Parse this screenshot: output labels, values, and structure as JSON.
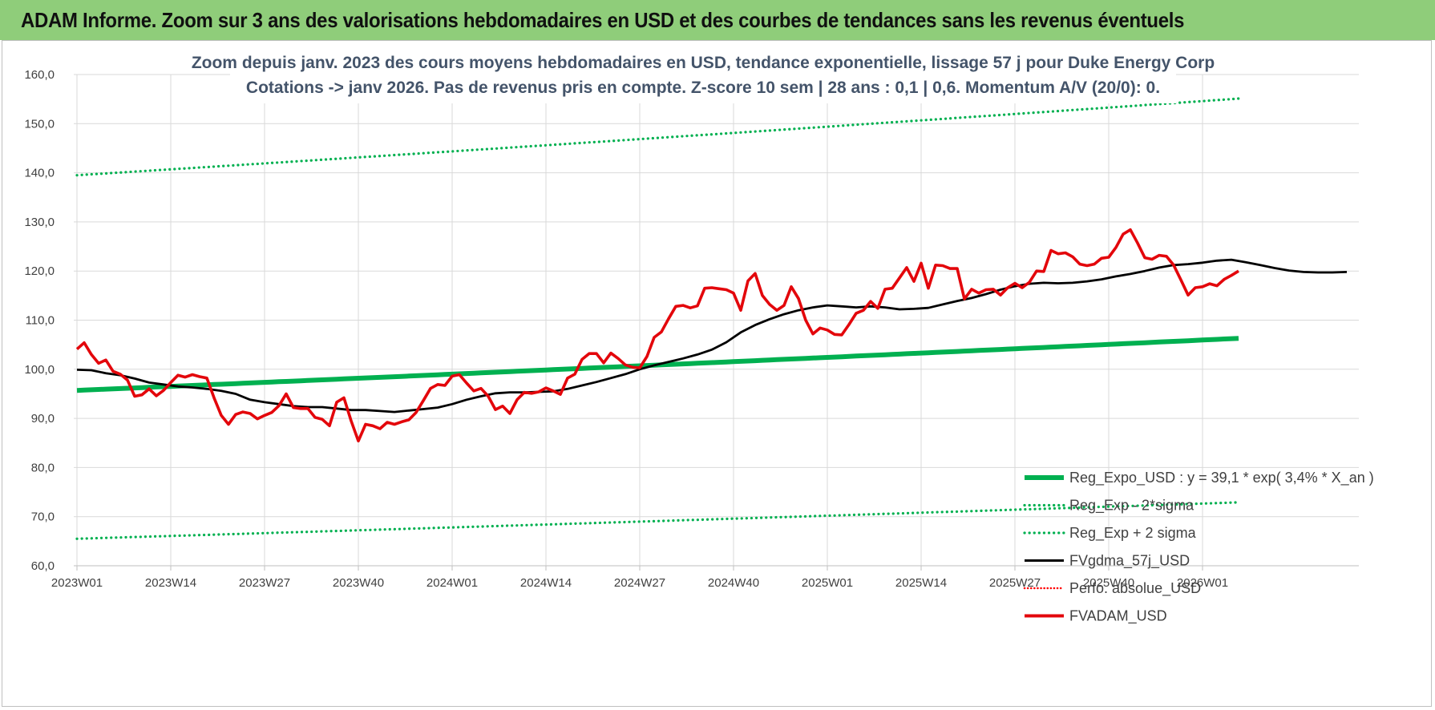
{
  "header": {
    "title": "ADAM Informe. Zoom sur 3 ans des valorisations hebdomadaires en USD et des courbes de tendances sans les revenus éventuels"
  },
  "colors": {
    "header_bg": "#8fcd7a",
    "reg_expo": "#00b050",
    "reg_sigma": "#00b050",
    "fvgdma": "#000000",
    "perfo": "#ff0000",
    "fvadam": "#e3060b"
  },
  "chart_data": {
    "type": "line",
    "title_line1": "Zoom depuis janv. 2023 des cours moyens hebdomadaires en USD, tendance exponentielle, lissage 57 j pour Duke Energy Corp",
    "title_line2": "Cotations -> janv 2026. Pas de revenus pris en compte. Z-score 10 sem | 28 ans : 0,1 | 0,6. Momentum A/V (20/0): 0.",
    "ylim": [
      60,
      160
    ],
    "yticks": [
      "60,0",
      "70,0",
      "80,0",
      "90,0",
      "100,0",
      "110,0",
      "120,0",
      "130,0",
      "140,0",
      "150,0",
      "160,0"
    ],
    "ytick_values": [
      60,
      70,
      80,
      90,
      100,
      110,
      120,
      130,
      140,
      150,
      160
    ],
    "xticks": [
      "2023W01",
      "2023W14",
      "2023W27",
      "2023W40",
      "2024W01",
      "2024W14",
      "2024W27",
      "2024W40",
      "2025W01",
      "2025W14",
      "2025W27",
      "2025W40",
      "2026W01"
    ],
    "xtick_index": [
      0,
      13,
      26,
      39,
      52,
      65,
      78,
      91,
      104,
      117,
      130,
      143,
      156
    ],
    "x_count": 161,
    "grid": true,
    "legend_position": "bottom-right",
    "series": [
      {
        "name": "Reg_Expo_USD : y = 39,1 * exp( 3,4% *  X_an )",
        "style": "thick",
        "start": 95.7,
        "end": 106.3
      },
      {
        "name": "Reg_Exp - 2*sigma",
        "style": "dotted",
        "start": 65.5,
        "end": 72.9
      },
      {
        "name": "Reg_Exp + 2 sigma",
        "style": "dotted",
        "start": 139.5,
        "end": 155.1
      },
      {
        "name": "FVgdma_57j_USD",
        "style": "solid",
        "points": [
          [
            0,
            99.9
          ],
          [
            2,
            99.8
          ],
          [
            4,
            99.2
          ],
          [
            6,
            98.8
          ],
          [
            8,
            98.1
          ],
          [
            10,
            97.3
          ],
          [
            12,
            96.9
          ],
          [
            14,
            96.5
          ],
          [
            16,
            96.3
          ],
          [
            18,
            96.0
          ],
          [
            20,
            95.6
          ],
          [
            22,
            95.0
          ],
          [
            24,
            93.8
          ],
          [
            26,
            93.3
          ],
          [
            28,
            92.9
          ],
          [
            30,
            92.5
          ],
          [
            32,
            92.3
          ],
          [
            34,
            92.3
          ],
          [
            36,
            92.0
          ],
          [
            38,
            91.7
          ],
          [
            40,
            91.7
          ],
          [
            42,
            91.5
          ],
          [
            44,
            91.3
          ],
          [
            46,
            91.6
          ],
          [
            48,
            91.9
          ],
          [
            50,
            92.2
          ],
          [
            52,
            92.9
          ],
          [
            54,
            93.8
          ],
          [
            56,
            94.5
          ],
          [
            58,
            95.1
          ],
          [
            60,
            95.3
          ],
          [
            62,
            95.3
          ],
          [
            64,
            95.4
          ],
          [
            66,
            95.5
          ],
          [
            68,
            96.0
          ],
          [
            70,
            96.7
          ],
          [
            72,
            97.4
          ],
          [
            74,
            98.2
          ],
          [
            76,
            99.0
          ],
          [
            78,
            100.0
          ],
          [
            80,
            100.8
          ],
          [
            82,
            101.5
          ],
          [
            84,
            102.2
          ],
          [
            86,
            103.0
          ],
          [
            88,
            104.0
          ],
          [
            90,
            105.5
          ],
          [
            92,
            107.5
          ],
          [
            94,
            109.0
          ],
          [
            96,
            110.2
          ],
          [
            98,
            111.2
          ],
          [
            100,
            112.0
          ],
          [
            102,
            112.6
          ],
          [
            104,
            113.0
          ],
          [
            106,
            112.8
          ],
          [
            108,
            112.6
          ],
          [
            110,
            112.8
          ],
          [
            112,
            112.6
          ],
          [
            114,
            112.2
          ],
          [
            116,
            112.3
          ],
          [
            118,
            112.5
          ],
          [
            120,
            113.2
          ],
          [
            122,
            113.9
          ],
          [
            124,
            114.5
          ],
          [
            126,
            115.3
          ],
          [
            128,
            116.2
          ],
          [
            130,
            116.9
          ],
          [
            132,
            117.4
          ],
          [
            134,
            117.6
          ],
          [
            136,
            117.5
          ],
          [
            138,
            117.6
          ],
          [
            140,
            117.9
          ],
          [
            142,
            118.3
          ],
          [
            144,
            118.9
          ],
          [
            146,
            119.4
          ],
          [
            148,
            120.0
          ],
          [
            150,
            120.7
          ],
          [
            152,
            121.2
          ],
          [
            154,
            121.4
          ],
          [
            156,
            121.7
          ],
          [
            158,
            122.1
          ],
          [
            160,
            122.3
          ],
          [
            162,
            121.8
          ],
          [
            164,
            121.2
          ],
          [
            166,
            120.6
          ],
          [
            168,
            120.1
          ],
          [
            170,
            119.8
          ],
          [
            172,
            119.7
          ],
          [
            174,
            119.7
          ],
          [
            176,
            119.8
          ]
        ]
      },
      {
        "name": "Perfo. absolue_USD",
        "style": "dotted-red",
        "hidden_in_plot": true
      },
      {
        "name": "FVADAM_USD",
        "style": "solid-thick",
        "points": [
          [
            0,
            104.1
          ],
          [
            1,
            105.4
          ],
          [
            2,
            103.0
          ],
          [
            3,
            101.2
          ],
          [
            4,
            101.9
          ],
          [
            5,
            99.6
          ],
          [
            6,
            99.0
          ],
          [
            7,
            97.8
          ],
          [
            8,
            94.5
          ],
          [
            9,
            94.8
          ],
          [
            10,
            96.0
          ],
          [
            11,
            94.6
          ],
          [
            12,
            95.7
          ],
          [
            13,
            97.3
          ],
          [
            14,
            98.8
          ],
          [
            15,
            98.4
          ],
          [
            16,
            98.9
          ],
          [
            17,
            98.5
          ],
          [
            18,
            98.2
          ],
          [
            19,
            94.2
          ],
          [
            20,
            90.6
          ],
          [
            21,
            88.8
          ],
          [
            22,
            90.8
          ],
          [
            23,
            91.3
          ],
          [
            24,
            91.0
          ],
          [
            25,
            89.9
          ],
          [
            26,
            90.6
          ],
          [
            27,
            91.2
          ],
          [
            28,
            92.6
          ],
          [
            29,
            95.0
          ],
          [
            30,
            92.2
          ],
          [
            31,
            92.0
          ],
          [
            32,
            92.0
          ],
          [
            33,
            90.2
          ],
          [
            34,
            89.8
          ],
          [
            35,
            88.5
          ],
          [
            36,
            93.3
          ],
          [
            37,
            94.2
          ],
          [
            38,
            89.5
          ],
          [
            39,
            85.4
          ],
          [
            40,
            88.8
          ],
          [
            41,
            88.5
          ],
          [
            42,
            87.9
          ],
          [
            43,
            89.2
          ],
          [
            44,
            88.8
          ],
          [
            45,
            89.3
          ],
          [
            46,
            89.7
          ],
          [
            47,
            91.2
          ],
          [
            48,
            93.6
          ],
          [
            49,
            96.1
          ],
          [
            50,
            96.9
          ],
          [
            51,
            96.7
          ],
          [
            52,
            98.6
          ],
          [
            53,
            98.9
          ],
          [
            54,
            97.2
          ],
          [
            55,
            95.6
          ],
          [
            56,
            96.1
          ],
          [
            57,
            94.5
          ],
          [
            58,
            91.8
          ],
          [
            59,
            92.5
          ],
          [
            60,
            91.0
          ],
          [
            61,
            93.8
          ],
          [
            62,
            95.3
          ],
          [
            63,
            95.1
          ],
          [
            64,
            95.4
          ],
          [
            65,
            96.2
          ],
          [
            66,
            95.6
          ],
          [
            67,
            94.9
          ],
          [
            68,
            98.2
          ],
          [
            69,
            99.0
          ],
          [
            70,
            102.0
          ],
          [
            71,
            103.2
          ],
          [
            72,
            103.2
          ],
          [
            73,
            101.3
          ],
          [
            74,
            103.3
          ],
          [
            75,
            102.2
          ],
          [
            76,
            100.9
          ],
          [
            77,
            100.4
          ],
          [
            78,
            100.3
          ],
          [
            79,
            102.6
          ],
          [
            80,
            106.5
          ],
          [
            81,
            107.6
          ],
          [
            82,
            110.3
          ],
          [
            83,
            112.8
          ],
          [
            84,
            113.0
          ],
          [
            85,
            112.5
          ],
          [
            86,
            112.9
          ],
          [
            87,
            116.5
          ],
          [
            88,
            116.6
          ],
          [
            89,
            116.4
          ],
          [
            90,
            116.2
          ],
          [
            91,
            115.5
          ],
          [
            92,
            112.0
          ],
          [
            93,
            118.0
          ],
          [
            94,
            119.5
          ],
          [
            95,
            115.0
          ],
          [
            96,
            113.2
          ],
          [
            97,
            112.0
          ],
          [
            98,
            113.0
          ],
          [
            99,
            116.8
          ],
          [
            100,
            114.4
          ],
          [
            101,
            110.0
          ],
          [
            102,
            107.2
          ],
          [
            103,
            108.4
          ],
          [
            104,
            108.0
          ],
          [
            105,
            107.1
          ],
          [
            106,
            107.0
          ],
          [
            107,
            109.1
          ],
          [
            108,
            111.4
          ],
          [
            109,
            112.0
          ],
          [
            110,
            113.8
          ],
          [
            111,
            112.4
          ],
          [
            112,
            116.3
          ],
          [
            113,
            116.5
          ],
          [
            114,
            118.6
          ],
          [
            115,
            120.7
          ],
          [
            116,
            117.9
          ],
          [
            117,
            121.6
          ],
          [
            118,
            116.5
          ],
          [
            119,
            121.2
          ],
          [
            120,
            121.1
          ],
          [
            121,
            120.5
          ],
          [
            122,
            120.5
          ],
          [
            123,
            114.3
          ],
          [
            124,
            116.3
          ],
          [
            125,
            115.5
          ],
          [
            126,
            116.2
          ],
          [
            127,
            116.3
          ],
          [
            128,
            115.1
          ],
          [
            129,
            116.6
          ],
          [
            130,
            117.5
          ],
          [
            131,
            116.6
          ],
          [
            132,
            117.7
          ],
          [
            133,
            120.0
          ],
          [
            134,
            119.9
          ],
          [
            135,
            124.2
          ],
          [
            136,
            123.5
          ],
          [
            137,
            123.7
          ],
          [
            138,
            122.9
          ],
          [
            139,
            121.4
          ],
          [
            140,
            121.1
          ],
          [
            141,
            121.4
          ],
          [
            142,
            122.6
          ],
          [
            143,
            122.8
          ],
          [
            144,
            124.8
          ],
          [
            145,
            127.5
          ],
          [
            146,
            128.4
          ],
          [
            147,
            125.7
          ],
          [
            148,
            122.7
          ],
          [
            149,
            122.4
          ],
          [
            150,
            123.2
          ],
          [
            151,
            123.0
          ],
          [
            152,
            121.2
          ],
          [
            153,
            118.2
          ],
          [
            154,
            115.1
          ],
          [
            155,
            116.6
          ],
          [
            156,
            116.8
          ],
          [
            157,
            117.4
          ],
          [
            158,
            117.0
          ],
          [
            159,
            118.3
          ],
          [
            160,
            119.1
          ],
          [
            161,
            120.0
          ]
        ]
      }
    ]
  }
}
